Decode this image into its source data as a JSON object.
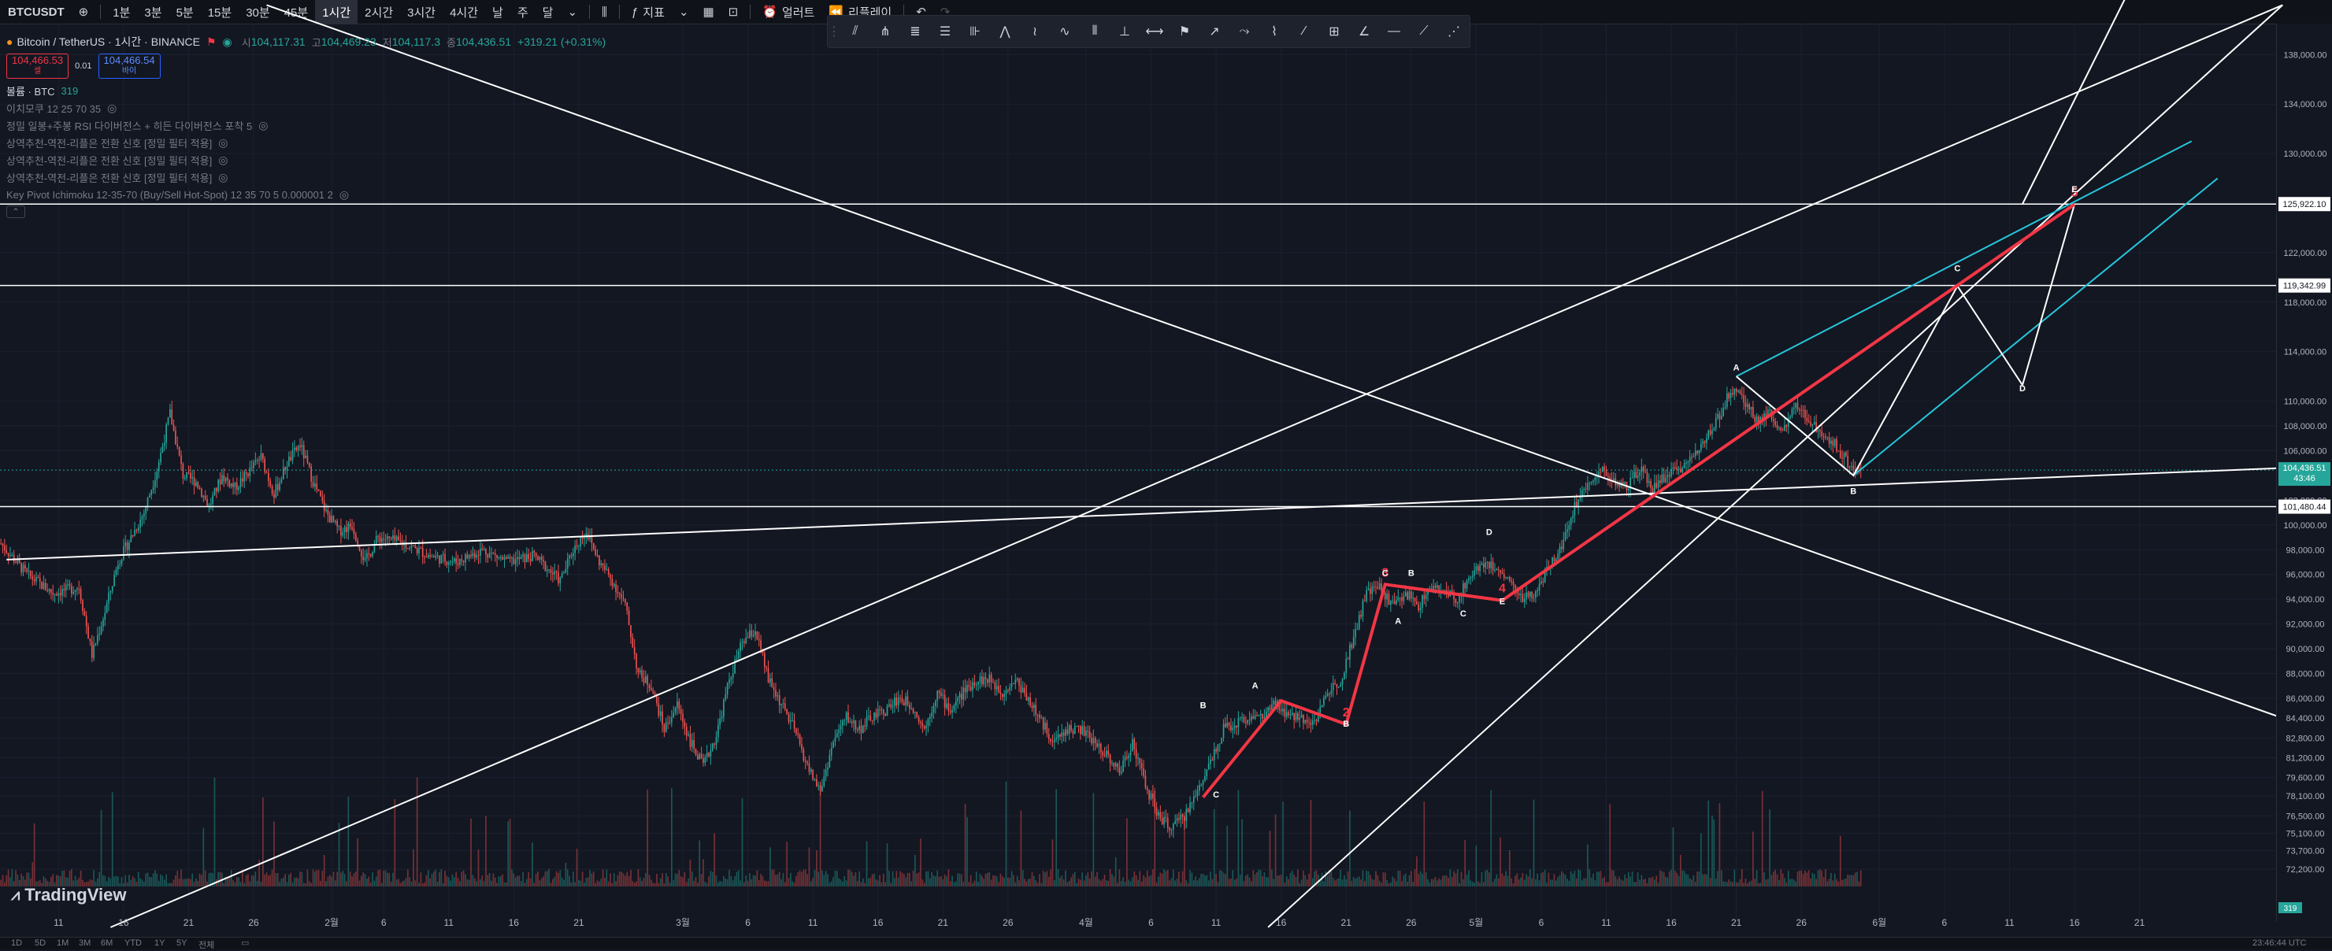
{
  "toolbar": {
    "symbol": "BTCUSDT",
    "intervals": [
      "1분",
      "3분",
      "5분",
      "15분",
      "30분",
      "45분",
      "1시간",
      "2시간",
      "3시간",
      "4시간",
      "날",
      "주",
      "달"
    ],
    "active_interval": "1시간",
    "indicators_label": "지표",
    "alert_label": "얼러트",
    "replay_label": "리플레이"
  },
  "legend": {
    "title": "Bitcoin / TetherUS · 1시간 · BINANCE",
    "open_label": "시",
    "open": "104,117.31",
    "high_label": "고",
    "high": "104,469.23",
    "low_label": "저",
    "low": "104,117.3",
    "close_label": "종",
    "close": "104,436.51",
    "change": "+319.21 (+0.31%)",
    "sell_price": "104,466.53",
    "sell_label": "셀",
    "spread": "0.01",
    "buy_price": "104,466.54",
    "buy_label": "바이",
    "volume_label": "볼륨 · BTC",
    "volume_value": "319",
    "indicators": [
      "이치모쿠 12 25 70 35",
      "정밀 일봉+주봉 RSI 다이버전스 + 히든 다이버전스 포착 5",
      "상역추천-역전-리플은 전환 신호 [정밀 필터 적용]",
      "상역추천-역전-리플은 전환 신호 [정밀 필터 적용]",
      "상역추천-역전-리플은 전환 신호 [정밀 필터 적용]",
      "Key Pivot Ichimoku 12-35-70 (Buy/Sell Hot-Spot) 12 35 70 5 0.000001 2"
    ]
  },
  "logo": "TradingView",
  "timeframes": [
    "1D",
    "5D",
    "1M",
    "3M",
    "6M",
    "YTD",
    "1Y",
    "5Y",
    "전체"
  ],
  "clock": "23:46:44 UTC",
  "colors": {
    "up": "#26a69a",
    "down": "#ef5350",
    "wave": "#f23645",
    "cyan": "#26c6da",
    "line": "#ffffff",
    "bg": "#131722"
  },
  "chart_data": {
    "type": "line",
    "symbol": "BTCUSDT",
    "ylim": [
      68000,
      140500
    ],
    "y_ticks": [
      138000,
      134000,
      130000,
      126000,
      122000,
      118000,
      114000,
      110000,
      108000,
      106000,
      102000,
      100000,
      98000,
      96000,
      94000,
      92000,
      90000,
      88000,
      86000,
      84400,
      82800,
      81200,
      79600,
      78100,
      76500,
      75100,
      73700,
      72200
    ],
    "x_tick_labels": [
      {
        "label": "11",
        "i": 4
      },
      {
        "label": "16",
        "i": 9
      },
      {
        "label": "21",
        "i": 14
      },
      {
        "label": "26",
        "i": 19
      },
      {
        "label": "2월",
        "i": 25
      },
      {
        "label": "6",
        "i": 29
      },
      {
        "label": "11",
        "i": 34
      },
      {
        "label": "16",
        "i": 39
      },
      {
        "label": "21",
        "i": 44
      },
      {
        "label": "3월",
        "i": 52
      },
      {
        "label": "6",
        "i": 57
      },
      {
        "label": "11",
        "i": 62
      },
      {
        "label": "16",
        "i": 67
      },
      {
        "label": "21",
        "i": 72
      },
      {
        "label": "26",
        "i": 77
      },
      {
        "label": "4월",
        "i": 83
      },
      {
        "label": "6",
        "i": 88
      },
      {
        "label": "11",
        "i": 93
      },
      {
        "label": "16",
        "i": 98
      },
      {
        "label": "21",
        "i": 103
      },
      {
        "label": "26",
        "i": 108
      },
      {
        "label": "5월",
        "i": 113
      },
      {
        "label": "6",
        "i": 118
      },
      {
        "label": "11",
        "i": 123
      },
      {
        "label": "16",
        "i": 128
      },
      {
        "label": "21",
        "i": 133
      },
      {
        "label": "26",
        "i": 138
      },
      {
        "label": "6월",
        "i": 144
      },
      {
        "label": "6",
        "i": 149
      },
      {
        "label": "11",
        "i": 154
      },
      {
        "label": "16",
        "i": 159
      },
      {
        "label": "21",
        "i": 164
      }
    ],
    "n_slots": 175,
    "last_index": 143,
    "price_series": [
      [
        0,
        98500
      ],
      [
        2,
        96000
      ],
      [
        4,
        94500
      ],
      [
        6,
        95000
      ],
      [
        7,
        89500
      ],
      [
        8,
        93000
      ],
      [
        9,
        97000
      ],
      [
        10,
        99000
      ],
      [
        11,
        101000
      ],
      [
        12,
        104500
      ],
      [
        13,
        109000
      ],
      [
        14,
        104000
      ],
      [
        15,
        103500
      ],
      [
        16,
        101500
      ],
      [
        17,
        104000
      ],
      [
        18,
        103000
      ],
      [
        20,
        105500
      ],
      [
        21,
        102500
      ],
      [
        22,
        105000
      ],
      [
        23,
        106500
      ],
      [
        24,
        103500
      ],
      [
        25,
        101000
      ],
      [
        26,
        99500
      ],
      [
        27,
        100000
      ],
      [
        28,
        97000
      ],
      [
        29,
        99000
      ],
      [
        31,
        98500
      ],
      [
        33,
        97500
      ],
      [
        35,
        97000
      ],
      [
        37,
        98000
      ],
      [
        39,
        97000
      ],
      [
        41,
        97500
      ],
      [
        43,
        95500
      ],
      [
        44,
        98000
      ],
      [
        45,
        99500
      ],
      [
        46,
        97000
      ],
      [
        47,
        95500
      ],
      [
        48,
        93500
      ],
      [
        49,
        88000
      ],
      [
        50,
        87000
      ],
      [
        51,
        83500
      ],
      [
        52,
        85500
      ],
      [
        53,
        82500
      ],
      [
        54,
        80500
      ],
      [
        55,
        83000
      ],
      [
        56,
        87500
      ],
      [
        57,
        90500
      ],
      [
        58,
        91500
      ],
      [
        59,
        87500
      ],
      [
        60,
        85500
      ],
      [
        61,
        83500
      ],
      [
        62,
        80500
      ],
      [
        63,
        78500
      ],
      [
        64,
        82500
      ],
      [
        65,
        84500
      ],
      [
        66,
        83500
      ],
      [
        67,
        84500
      ],
      [
        68,
        85000
      ],
      [
        69,
        86000
      ],
      [
        70,
        85500
      ],
      [
        71,
        83500
      ],
      [
        72,
        86500
      ],
      [
        73,
        85000
      ],
      [
        74,
        86500
      ],
      [
        75,
        87500
      ],
      [
        76,
        87500
      ],
      [
        77,
        86500
      ],
      [
        78,
        87500
      ],
      [
        79,
        86000
      ],
      [
        80,
        84000
      ],
      [
        81,
        82500
      ],
      [
        82,
        83500
      ],
      [
        83,
        83500
      ],
      [
        84,
        82500
      ],
      [
        85,
        81500
      ],
      [
        86,
        80000
      ],
      [
        87,
        82500
      ],
      [
        88,
        79000
      ],
      [
        89,
        76500
      ],
      [
        90,
        75500
      ],
      [
        91,
        76500
      ],
      [
        92,
        78500
      ],
      [
        93,
        81000
      ],
      [
        94,
        83500
      ],
      [
        95,
        84000
      ],
      [
        96,
        84500
      ],
      [
        97,
        84500
      ],
      [
        98,
        85500
      ],
      [
        99,
        84500
      ],
      [
        100,
        84500
      ],
      [
        101,
        84000
      ],
      [
        102,
        86500
      ],
      [
        103,
        87500
      ],
      [
        104,
        91000
      ],
      [
        105,
        94500
      ],
      [
        106,
        95000
      ],
      [
        107,
        93500
      ],
      [
        108,
        94500
      ],
      [
        109,
        93500
      ],
      [
        110,
        95000
      ],
      [
        111,
        94500
      ],
      [
        112,
        94000
      ],
      [
        113,
        96000
      ],
      [
        114,
        97000
      ],
      [
        115,
        96500
      ],
      [
        116,
        95500
      ],
      [
        117,
        94000
      ],
      [
        118,
        94500
      ],
      [
        119,
        96500
      ],
      [
        120,
        98500
      ],
      [
        121,
        101500
      ],
      [
        122,
        103500
      ],
      [
        123,
        104500
      ],
      [
        124,
        103500
      ],
      [
        125,
        103000
      ],
      [
        126,
        104500
      ],
      [
        127,
        103000
      ],
      [
        128,
        104000
      ],
      [
        129,
        104500
      ],
      [
        130,
        105500
      ],
      [
        131,
        107000
      ],
      [
        132,
        108500
      ],
      [
        133,
        111000
      ],
      [
        134,
        110000
      ],
      [
        135,
        108500
      ],
      [
        136,
        109000
      ],
      [
        137,
        107500
      ],
      [
        138,
        109500
      ],
      [
        139,
        108500
      ],
      [
        140,
        107500
      ],
      [
        141,
        106500
      ],
      [
        142,
        105000
      ],
      [
        143,
        104436.5
      ]
    ],
    "price_lines": [
      {
        "price": 125922.1,
        "label": "125,922.10"
      },
      {
        "price": 119342.99,
        "label": "119,342.99"
      },
      {
        "price": 101480.44,
        "label": "101,480.44"
      }
    ],
    "last_price": {
      "price": 104436.51,
      "label": "104,436.51",
      "countdown": "43:46"
    },
    "volume_badge": "319",
    "trendlines": [
      {
        "from": [
          20,
          142000
        ],
        "to": [
          175,
          84400
        ]
      },
      {
        "from": [
          0,
          97200
        ],
        "to": [
          175,
          104600
        ]
      },
      {
        "from": [
          8,
          67500
        ],
        "to": [
          175,
          142000
        ]
      },
      {
        "from": [
          97,
          67500
        ],
        "to": [
          175,
          142000
        ]
      },
      {
        "from": [
          155,
          125922
        ],
        "to": [
          175,
          168000
        ]
      }
    ],
    "wave_pattern": {
      "points": [
        [
          92,
          78000
        ],
        [
          98,
          85800
        ],
        [
          103,
          83900
        ],
        [
          106,
          95200
        ],
        [
          115,
          93900
        ],
        [
          159,
          125900
        ]
      ],
      "labels": [
        {
          "text": "2",
          "i": 103,
          "p": 83900
        },
        {
          "text": "3",
          "i": 106,
          "p": 95200
        },
        {
          "text": "4",
          "i": 115,
          "p": 93900
        },
        {
          "text": "5",
          "i": 159,
          "p": 125900
        }
      ]
    },
    "abc_markers": [
      {
        "text": "B",
        "i": 92,
        "p": 85200
      },
      {
        "text": "C",
        "i": 93,
        "p": 78000
      },
      {
        "text": "A",
        "i": 96,
        "p": 86800
      },
      {
        "text": "B",
        "i": 103,
        "p": 83700
      },
      {
        "text": "C",
        "i": 106,
        "p": 95900
      },
      {
        "text": "B",
        "i": 108,
        "p": 95900
      },
      {
        "text": "A",
        "i": 107,
        "p": 92000
      },
      {
        "text": "C",
        "i": 112,
        "p": 92600
      },
      {
        "text": "D",
        "i": 114,
        "p": 99200
      },
      {
        "text": "E",
        "i": 115,
        "p": 93600
      },
      {
        "text": "A",
        "i": 133,
        "p": 112500
      },
      {
        "text": "B",
        "i": 142,
        "p": 102500
      },
      {
        "text": "C",
        "i": 150,
        "p": 120500
      },
      {
        "text": "D",
        "i": 155,
        "p": 110800
      },
      {
        "text": "E",
        "i": 159,
        "p": 126900
      }
    ],
    "projection": [
      [
        133,
        112000
      ],
      [
        142,
        104000
      ],
      [
        150,
        119300
      ],
      [
        155,
        111300
      ],
      [
        159,
        125900
      ]
    ],
    "channel_lines": [
      {
        "from": [
          133,
          112000
        ],
        "to": [
          168,
          131000
        ]
      },
      {
        "from": [
          142,
          104000
        ],
        "to": [
          170,
          128000
        ]
      }
    ]
  }
}
